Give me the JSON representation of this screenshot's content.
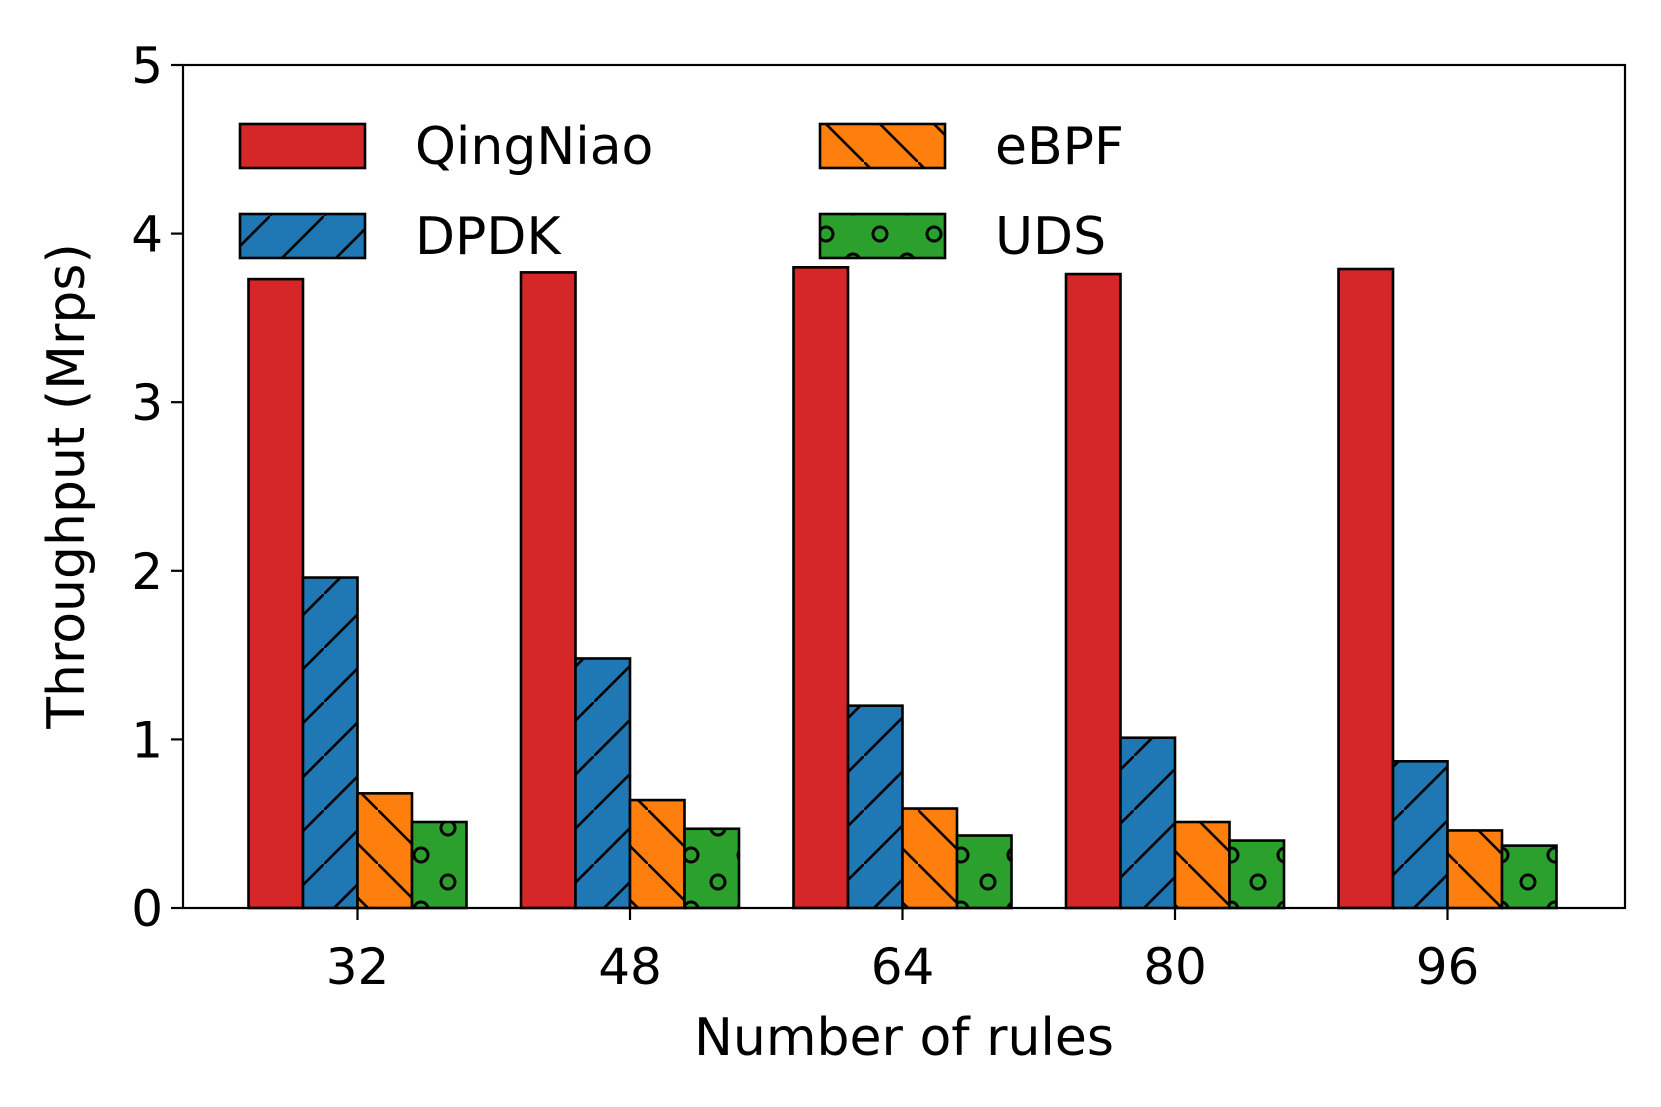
{
  "chart_data": {
    "type": "bar",
    "xlabel": "Number of rules",
    "ylabel": "Throughput (Mrps)",
    "categories": [
      "32",
      "48",
      "64",
      "80",
      "96"
    ],
    "ylim": [
      0,
      5
    ],
    "yticks": [
      "0",
      "1",
      "2",
      "3",
      "4",
      "5"
    ],
    "grid": false,
    "legend": {
      "placement": "top-left",
      "columns": 2
    },
    "series": [
      {
        "name": "QingNiao",
        "values": [
          3.73,
          3.77,
          3.8,
          3.76,
          3.79
        ],
        "color": "#d62728",
        "hatch": "none"
      },
      {
        "name": "DPDK",
        "values": [
          1.96,
          1.48,
          1.2,
          1.01,
          0.87
        ],
        "color": "#1f77b4",
        "hatch": "diagonal-forward"
      },
      {
        "name": "eBPF",
        "values": [
          0.68,
          0.64,
          0.59,
          0.51,
          0.46
        ],
        "color": "#ff7f0e",
        "hatch": "diagonal-back"
      },
      {
        "name": "UDS",
        "values": [
          0.51,
          0.47,
          0.43,
          0.4,
          0.37
        ],
        "color": "#2ca02c",
        "hatch": "circles"
      }
    ]
  }
}
